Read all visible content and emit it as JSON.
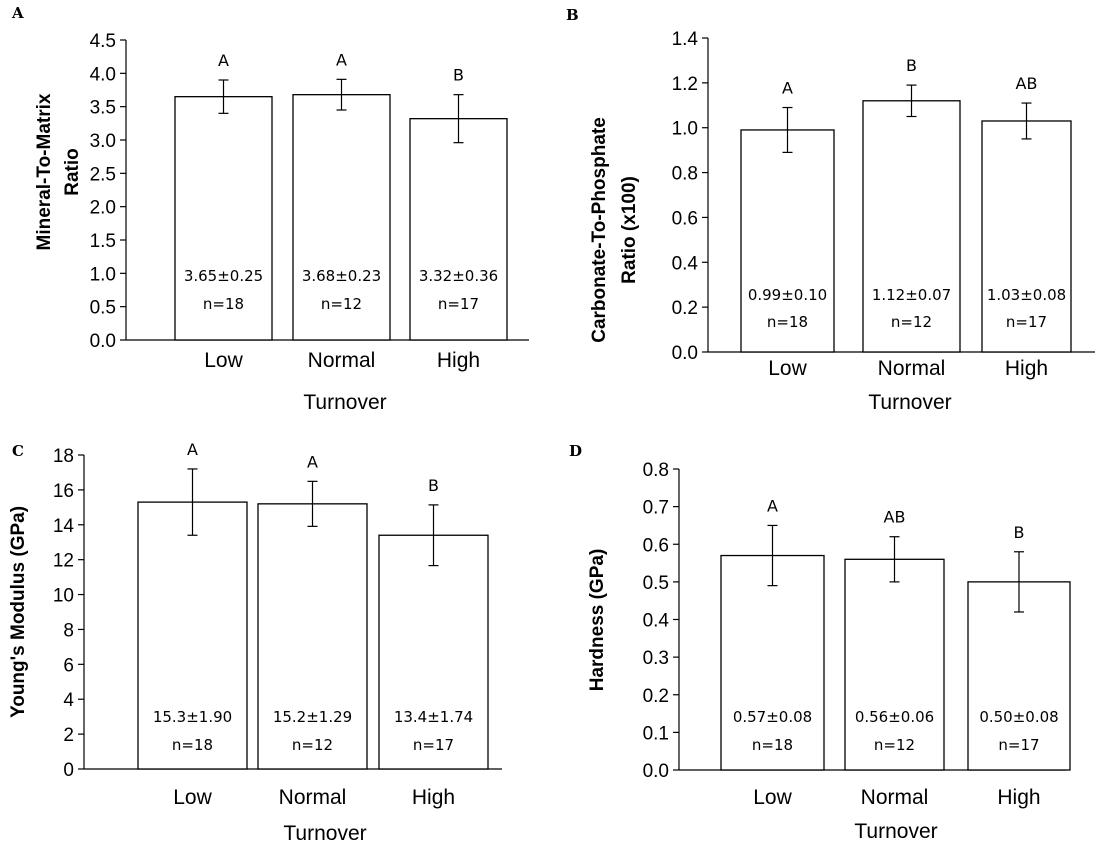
{
  "chart_data": [
    {
      "type": "bar",
      "panel": "A",
      "categories": [
        "Low",
        "Normal",
        "High"
      ],
      "values": [
        3.65,
        3.68,
        3.32
      ],
      "errors": [
        0.25,
        0.23,
        0.36
      ],
      "significance": [
        "A",
        "A",
        "B"
      ],
      "bar_labels": [
        "3.65±0.25",
        "3.68±0.23",
        "3.32±0.36"
      ],
      "n_labels": [
        "n=18",
        "n=12",
        "n=17"
      ],
      "ylabel_lines": [
        "Mineral-To-Matrix",
        "Ratio"
      ],
      "xlabel": "Turnover",
      "ylim": [
        0,
        4.5
      ],
      "yticks": [
        "0.0",
        "0.5",
        "1.0",
        "1.5",
        "2.0",
        "2.5",
        "3.0",
        "3.5",
        "4.0",
        "4.5"
      ]
    },
    {
      "type": "bar",
      "panel": "B",
      "categories": [
        "Low",
        "Normal",
        "High"
      ],
      "values": [
        0.99,
        1.12,
        1.03
      ],
      "errors": [
        0.1,
        0.07,
        0.08
      ],
      "significance": [
        "A",
        "B",
        "AB"
      ],
      "bar_labels": [
        "0.99±0.10",
        "1.12±0.07",
        "1.03±0.08"
      ],
      "n_labels": [
        "n=18",
        "n=12",
        "n=17"
      ],
      "ylabel_lines": [
        "Carbonate-To-Phosphate",
        "Ratio (x100)"
      ],
      "xlabel": "Turnover",
      "ylim": [
        0,
        1.4
      ],
      "yticks": [
        "0.0",
        "0.2",
        "0.4",
        "0.6",
        "0.8",
        "1.0",
        "1.2",
        "1.4"
      ]
    },
    {
      "type": "bar",
      "panel": "C",
      "categories": [
        "Low",
        "Normal",
        "High"
      ],
      "values": [
        15.3,
        15.2,
        13.4
      ],
      "errors": [
        1.9,
        1.29,
        1.74
      ],
      "significance": [
        "A",
        "A",
        "B"
      ],
      "bar_labels": [
        "15.3±1.90",
        "15.2±1.29",
        "13.4±1.74"
      ],
      "n_labels": [
        "n=18",
        "n=12",
        "n=17"
      ],
      "ylabel_lines": [
        "Young's Modulus (GPa)"
      ],
      "xlabel": "Turnover",
      "ylim": [
        0,
        18
      ],
      "yticks": [
        "0",
        "2",
        "4",
        "6",
        "8",
        "10",
        "12",
        "14",
        "16",
        "18"
      ]
    },
    {
      "type": "bar",
      "panel": "D",
      "categories": [
        "Low",
        "Normal",
        "High"
      ],
      "values": [
        0.57,
        0.56,
        0.5
      ],
      "errors": [
        0.08,
        0.06,
        0.08
      ],
      "significance": [
        "A",
        "AB",
        "B"
      ],
      "bar_labels": [
        "0.57±0.08",
        "0.56±0.06",
        "0.50±0.08"
      ],
      "n_labels": [
        "n=18",
        "n=12",
        "n=17"
      ],
      "ylabel_lines": [
        "Hardness (GPa)"
      ],
      "xlabel": "Turnover",
      "ylim": [
        0,
        0.8
      ],
      "yticks": [
        "0.0",
        "0.1",
        "0.2",
        "0.3",
        "0.4",
        "0.5",
        "0.6",
        "0.7",
        "0.8"
      ]
    }
  ]
}
